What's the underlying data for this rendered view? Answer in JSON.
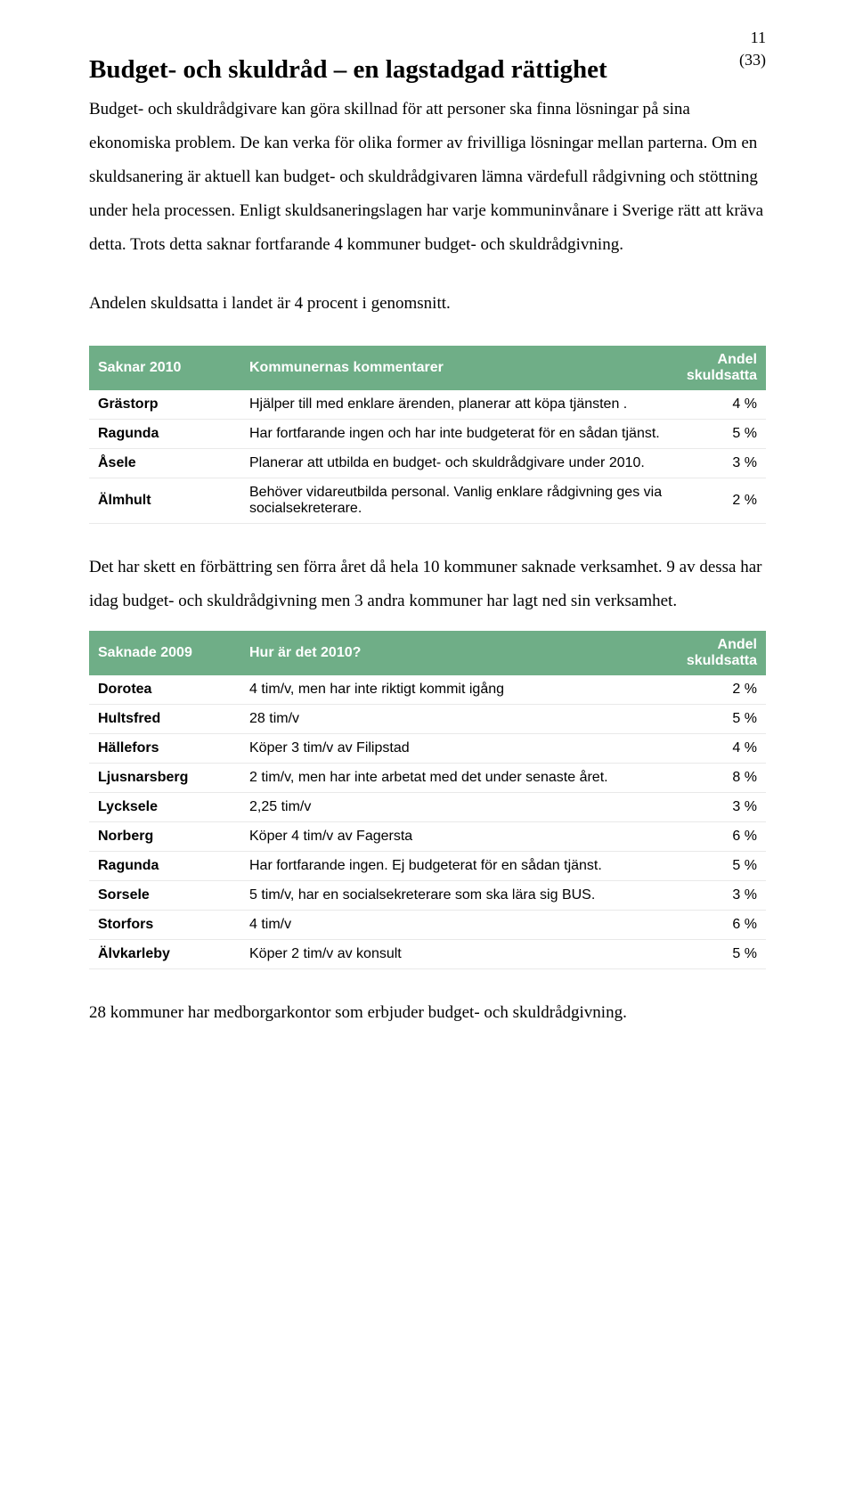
{
  "page_number": {
    "num": "11",
    "total": "(33)"
  },
  "colors": {
    "table_header_bg": "#6fae87",
    "table_header_fg": "#ffffff",
    "row_border": "#e9e9e9",
    "text": "#000000"
  },
  "heading": "Budget- och skuldråd – en lagstadgad rättighet",
  "para1": "Budget- och skuldrådgivare kan göra skillnad för att personer ska finna lösningar på sina ekonomiska problem. De kan verka för olika former av frivilliga lösningar mellan parterna. Om en skuldsanering är aktuell kan budget- och skuldrådgivaren lämna värdefull rådgivning och stöttning under hela processen. Enligt skuldsaneringslagen har varje kommuninvånare i Sverige rätt att kräva detta. Trots detta saknar fortfarande 4 kommuner budget- och skuldrådgivning.",
  "para2": "Andelen skuldsatta i landet är 4 procent i genomsnitt.",
  "table1": {
    "headers": [
      "Saknar 2010",
      "Kommunernas kommentarer",
      "Andel skuldsatta"
    ],
    "rows": [
      {
        "name": "Grästorp",
        "comment": "Hjälper till med enklare ärenden, planerar att köpa tjänsten .",
        "pct": "4 %"
      },
      {
        "name": "Ragunda",
        "comment": "Har fortfarande ingen och har inte budgeterat för en sådan tjänst.",
        "pct": "5 %"
      },
      {
        "name": "Åsele",
        "comment": "Planerar att utbilda en budget- och skuldrådgivare under 2010.",
        "pct": "3 %"
      },
      {
        "name": "Älmhult",
        "comment": "Behöver vidareutbilda personal. Vanlig enklare rådgivning ges via socialsekreterare.",
        "pct": "2 %"
      }
    ]
  },
  "para3": "Det har skett en förbättring sen förra året då hela 10 kommuner saknade verksamhet. 9 av dessa har idag budget- och skuldrådgivning men 3 andra kommuner har lagt ned sin verksamhet.",
  "table2": {
    "headers": [
      "Saknade 2009",
      "Hur är det 2010?",
      "Andel skuldsatta"
    ],
    "rows": [
      {
        "name": "Dorotea",
        "comment": "4 tim/v, men har inte riktigt kommit igång",
        "pct": "2 %"
      },
      {
        "name": "Hultsfred",
        "comment": "28 tim/v",
        "pct": "5 %"
      },
      {
        "name": "Hällefors",
        "comment": "Köper 3 tim/v av Filipstad",
        "pct": "4 %"
      },
      {
        "name": "Ljusnarsberg",
        "comment": "2 tim/v, men har inte arbetat med det under senaste året.",
        "pct": "8 %"
      },
      {
        "name": "Lycksele",
        "comment": "2,25 tim/v",
        "pct": "3 %"
      },
      {
        "name": "Norberg",
        "comment": "Köper 4 tim/v av Fagersta",
        "pct": "6 %"
      },
      {
        "name": "Ragunda",
        "comment": "Har fortfarande ingen. Ej budgeterat för en sådan tjänst.",
        "pct": "5 %"
      },
      {
        "name": "Sorsele",
        "comment": "5 tim/v, har en socialsekreterare som ska lära sig BUS.",
        "pct": "3 %"
      },
      {
        "name": "Storfors",
        "comment": "4 tim/v",
        "pct": "6 %"
      },
      {
        "name": "Älvkarleby",
        "comment": "Köper 2 tim/v av konsult",
        "pct": "5 %"
      }
    ]
  },
  "para4": "28 kommuner har medborgarkontor som erbjuder budget- och skuldrådgivning."
}
